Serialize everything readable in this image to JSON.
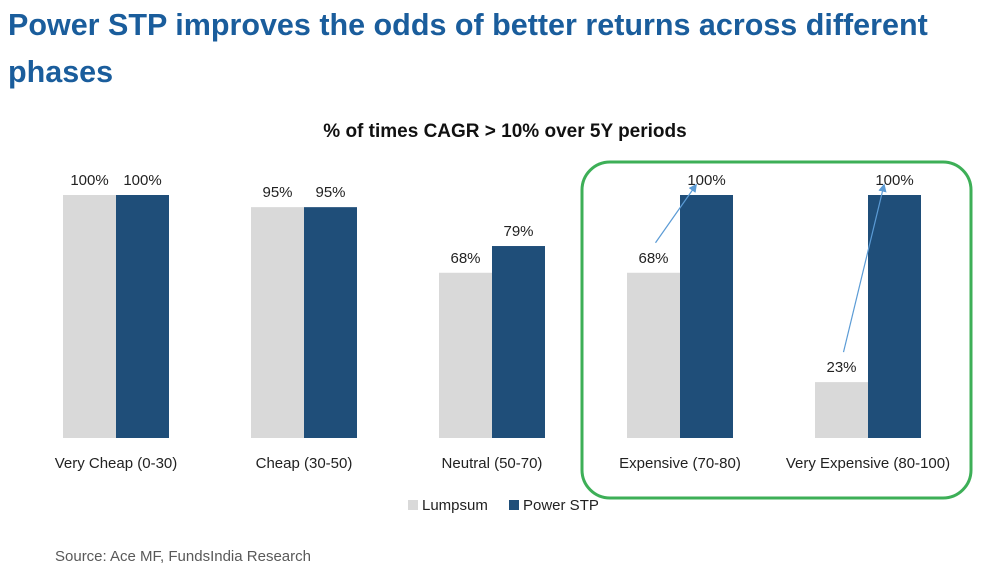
{
  "slide": {
    "title": "Power STP improves the odds of better returns across different phases",
    "source": "Source: Ace MF, FundsIndia Research"
  },
  "colors": {
    "title": "#1a5d9c",
    "lumpsum": "#d9d9d9",
    "power_stp": "#1f4e79",
    "highlight_border": "#3daf57",
    "arrow": "#5b9bd5"
  },
  "chart_data": {
    "type": "bar",
    "title": "% of times CAGR > 10% over 5Y periods",
    "categories": [
      "Very Cheap (0-30)",
      "Cheap (30-50)",
      "Neutral (50-70)",
      "Expensive (70-80)",
      "Very Expensive (80-100)"
    ],
    "series": [
      {
        "name": "Lumpsum",
        "values": [
          100,
          95,
          68,
          68,
          23
        ]
      },
      {
        "name": "Power STP",
        "values": [
          100,
          95,
          79,
          100,
          100
        ]
      }
    ],
    "data_labels": [
      [
        "100%",
        "95%",
        "68%",
        "68%",
        "23%"
      ],
      [
        "100%",
        "95%",
        "79%",
        "100%",
        "100%"
      ]
    ],
    "ylim": [
      0,
      100
    ],
    "xlabel": "",
    "ylabel": "",
    "grid": false,
    "legend_position": "bottom",
    "highlighted_categories": [
      "Expensive (70-80)",
      "Very Expensive (80-100)"
    ],
    "annotations": "Arrows from Lumpsum to Power STP in highlighted categories"
  }
}
